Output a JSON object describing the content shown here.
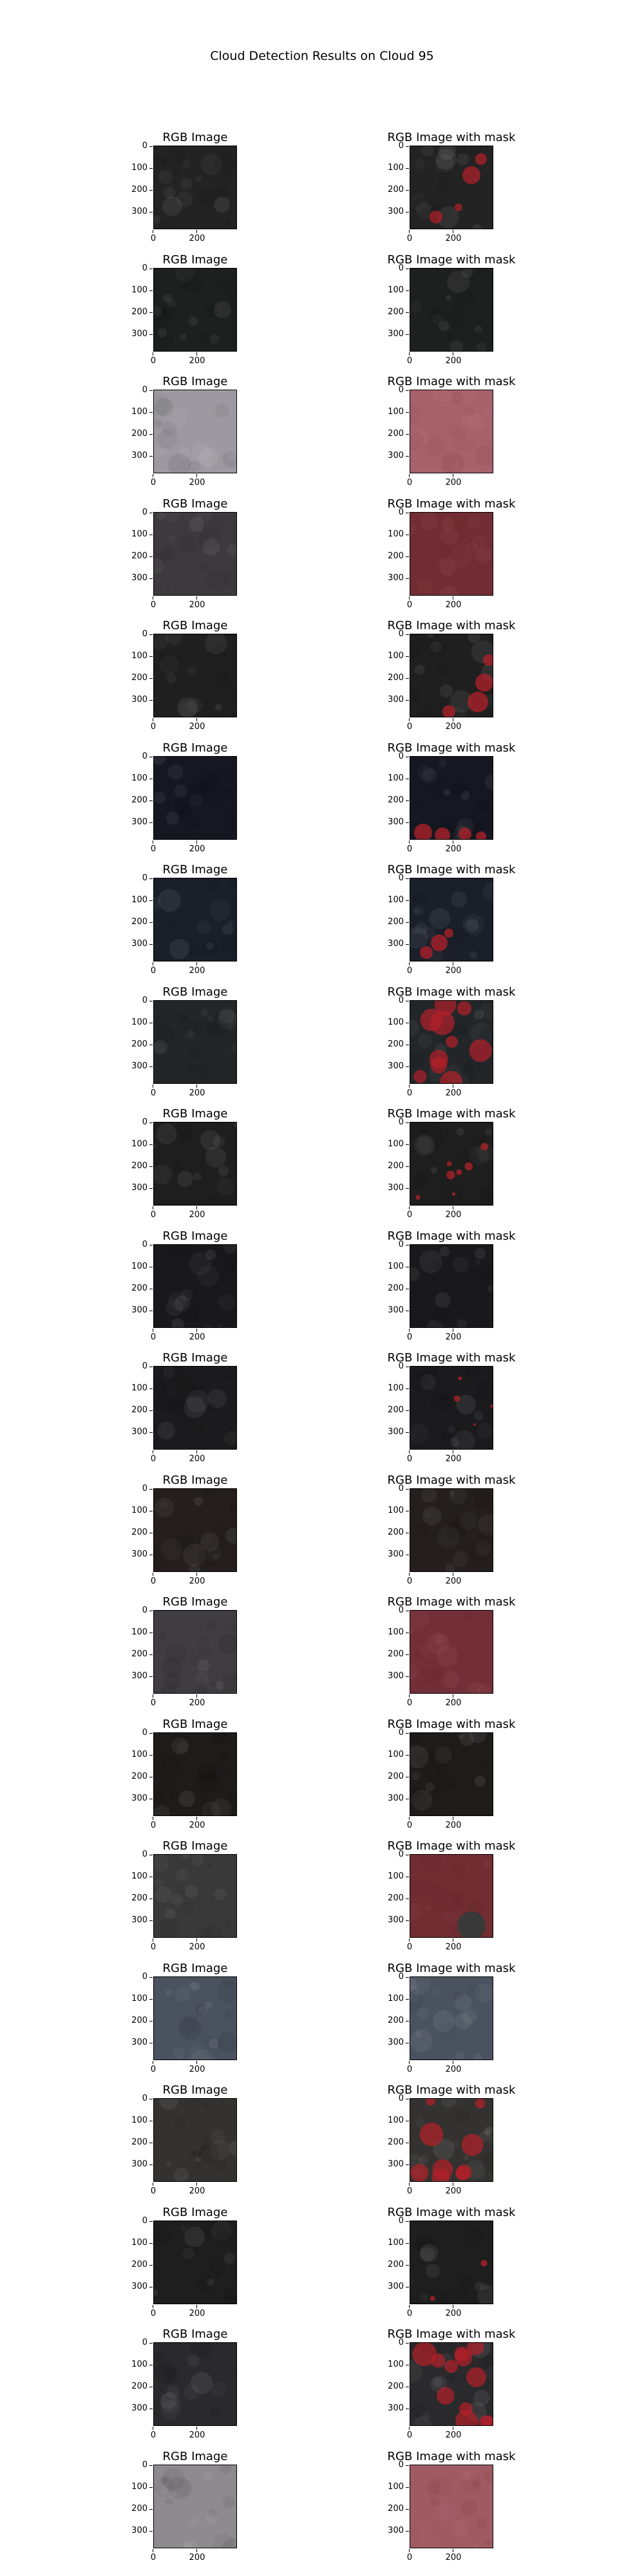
{
  "figure": {
    "title": "Cloud Detection Results on Cloud 95",
    "left_panel_title": "RGB Image",
    "right_panel_title": "RGB Image with mask",
    "y_ticks": [
      "0",
      "100",
      "200",
      "300"
    ],
    "x_ticks": [
      "0",
      "200"
    ],
    "mask_color": "#b3202a",
    "rows": [
      {
        "base": "#232323",
        "mask_level": 0.2,
        "mask_kind": "right-patches"
      },
      {
        "base": "#1e1f1f",
        "mask_level": 0.0,
        "mask_kind": "none"
      },
      {
        "base": "#9c9aa0",
        "mask_level": 1.0,
        "mask_kind": "full"
      },
      {
        "base": "#3c3a3c",
        "mask_level": 1.0,
        "mask_kind": "full"
      },
      {
        "base": "#1f1f1f",
        "mask_level": 0.25,
        "mask_kind": "bottom-right"
      },
      {
        "base": "#151821",
        "mask_level": 0.2,
        "mask_kind": "bottom"
      },
      {
        "base": "#1a1f29",
        "mask_level": 0.12,
        "mask_kind": "bottom-left"
      },
      {
        "base": "#222629",
        "mask_level": 0.4,
        "mask_kind": "clouds"
      },
      {
        "base": "#1e1e1e",
        "mask_level": 0.12,
        "mask_kind": "spots"
      },
      {
        "base": "#19191c",
        "mask_level": 0.0,
        "mask_kind": "none"
      },
      {
        "base": "#1b1b1d",
        "mask_level": 0.06,
        "mask_kind": "spots"
      },
      {
        "base": "#241f1e",
        "mask_level": 0.0,
        "mask_kind": "none"
      },
      {
        "base": "#3f3d42",
        "mask_level": 1.0,
        "mask_kind": "full"
      },
      {
        "base": "#1e1b1b",
        "mask_level": 0.0,
        "mask_kind": "none"
      },
      {
        "base": "#3a393a",
        "mask_level": 0.9,
        "mask_kind": "mostly"
      },
      {
        "base": "#4a5260",
        "mask_level": 0.0,
        "mask_kind": "none"
      },
      {
        "base": "#333230",
        "mask_level": 0.3,
        "mask_kind": "clouds"
      },
      {
        "base": "#1e1e1f",
        "mask_level": 0.03,
        "mask_kind": "spots"
      },
      {
        "base": "#2a2a2c",
        "mask_level": 0.5,
        "mask_kind": "clouds"
      },
      {
        "base": "#8e8b90",
        "mask_level": 1.0,
        "mask_kind": "full"
      }
    ]
  }
}
